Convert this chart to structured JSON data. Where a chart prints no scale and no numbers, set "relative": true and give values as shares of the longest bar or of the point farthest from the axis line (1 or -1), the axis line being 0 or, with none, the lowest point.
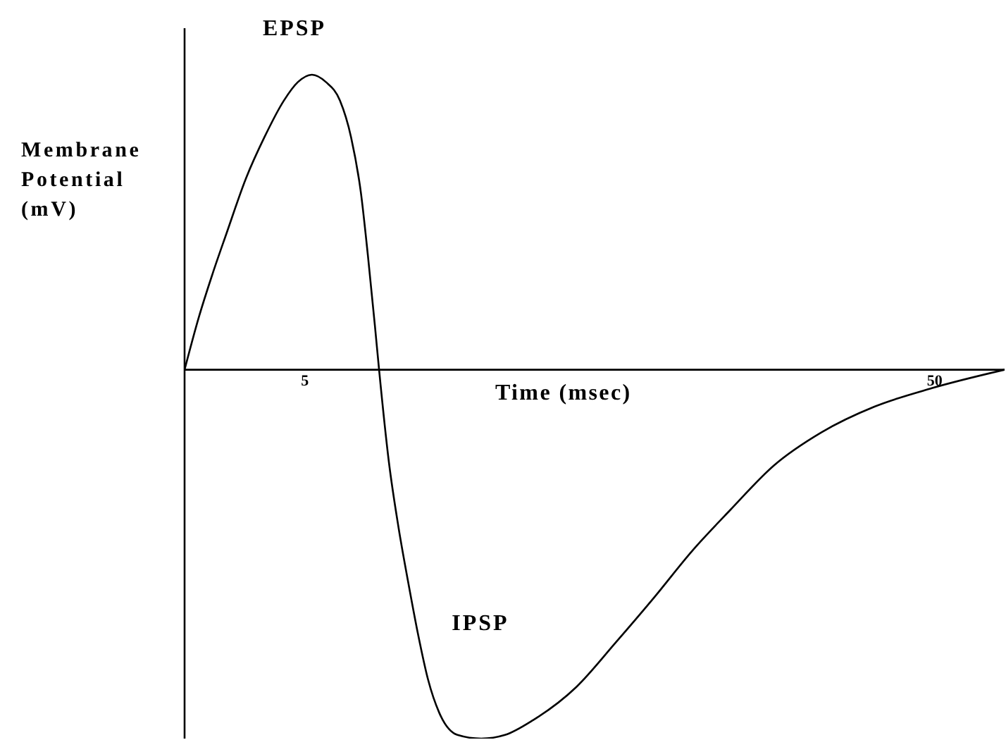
{
  "chart_data": {
    "type": "line",
    "xlabel": "Time (msec)",
    "ylabel": "Membrane Potential (mV)",
    "relative": true,
    "x": [
      -3.6,
      -2.6,
      -1.6,
      -0.6,
      0.8,
      2.1,
      3.5,
      4.5,
      5.5,
      6.5,
      7.5,
      8.3,
      9.0,
      9.5,
      10.0,
      10.3,
      11.0,
      11.7,
      12.4,
      13.1,
      13.8,
      14.6,
      15.9,
      17.6,
      19.3,
      21.3,
      24.4,
      27.2,
      29.9,
      32.7,
      35.4,
      38.5,
      41.9,
      45.7,
      49.8,
      55.0
    ],
    "values": [
      0,
      0.14,
      0.26,
      0.37,
      0.52,
      0.63,
      0.73,
      0.78,
      0.8,
      0.78,
      0.73,
      0.63,
      0.48,
      0.31,
      0.12,
      0,
      -0.25,
      -0.43,
      -0.58,
      -0.72,
      -0.84,
      -0.93,
      -0.99,
      -1,
      -0.99,
      -0.95,
      -0.86,
      -0.74,
      -0.62,
      -0.49,
      -0.38,
      -0.26,
      -0.17,
      -0.1,
      -0.05,
      0
    ],
    "color": "#000000",
    "xlim": [
      -3.6,
      55
    ],
    "xticks": [
      5,
      50
    ],
    "annotations": [
      "EPSP",
      "IPSP"
    ]
  }
}
